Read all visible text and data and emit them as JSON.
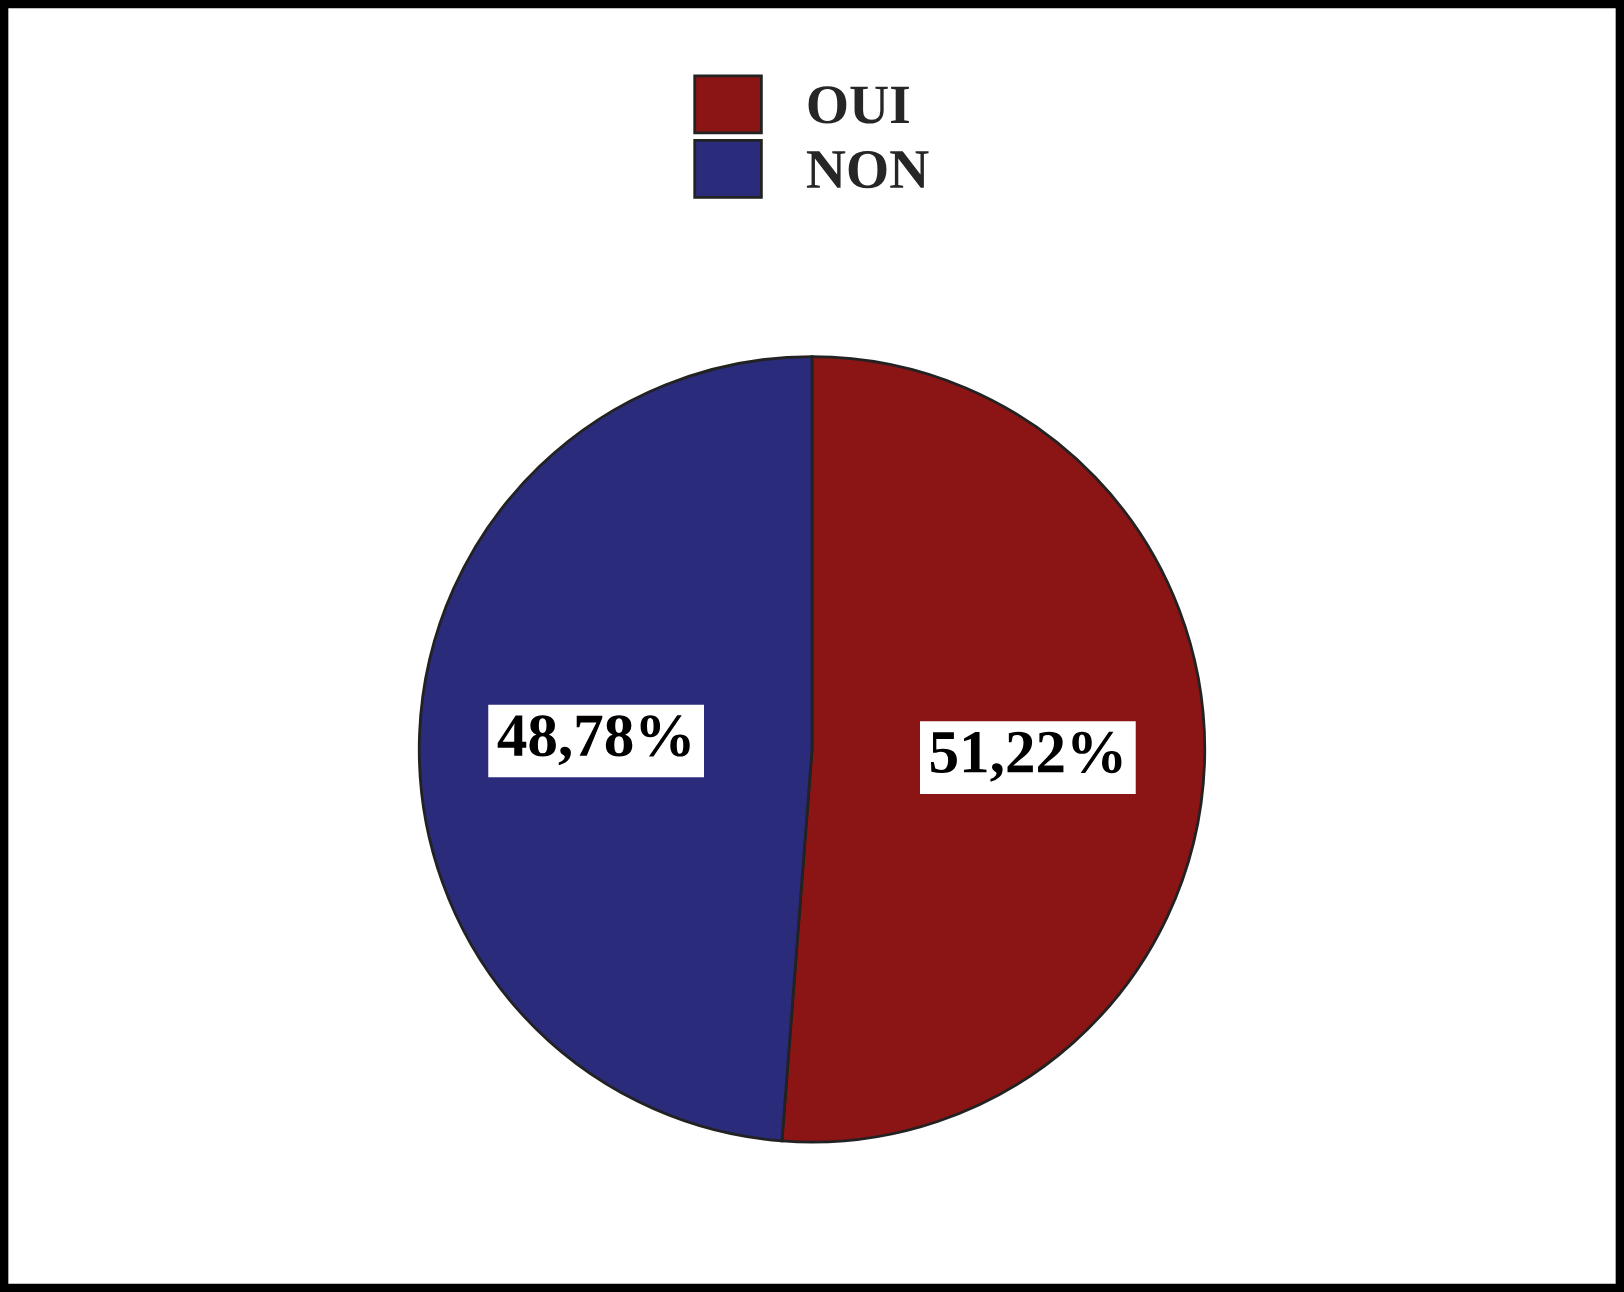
{
  "chart_data": {
    "type": "pie",
    "categories": [
      "OUI",
      "NON"
    ],
    "values": [
      51.22,
      48.78
    ],
    "colors": [
      "#8b1515",
      "#2b2b7b"
    ],
    "value_labels": [
      "51,22%",
      "48,78%"
    ],
    "legend": "top"
  }
}
